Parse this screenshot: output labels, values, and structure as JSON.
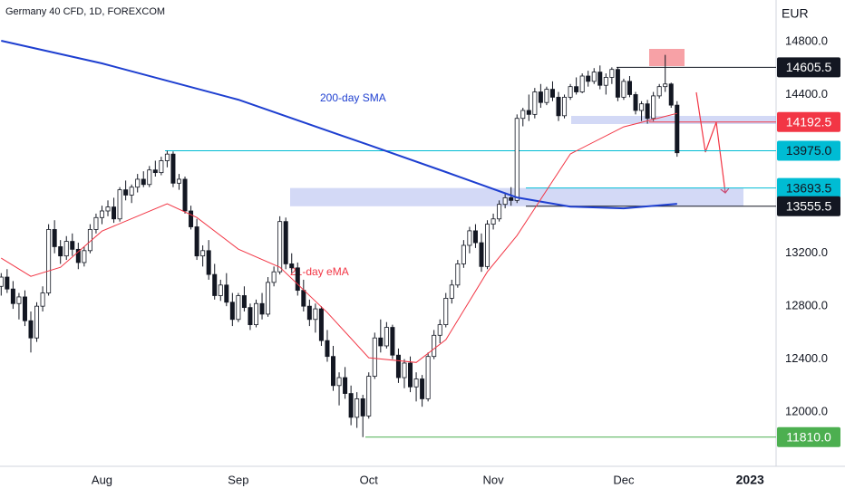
{
  "chart_data": {
    "type": "candlestick",
    "title": "Germany 40 CFD, 1D, FOREXCOM",
    "currency": "EUR",
    "ylim": [
      11610,
      15115
    ],
    "yticks": [
      {
        "value": 14800,
        "label": "14800.0"
      },
      {
        "value": 14400,
        "label": "14400.0"
      },
      {
        "value": 13200,
        "label": "13200.0"
      },
      {
        "value": 12800,
        "label": "12800.0"
      },
      {
        "value": 12400,
        "label": "12400.0"
      },
      {
        "value": 12000,
        "label": "12000.0"
      }
    ],
    "xlim": [
      -0.2,
      130.7
    ],
    "xticks": [
      {
        "value": 17,
        "label": "Aug"
      },
      {
        "value": 40,
        "label": "Sep"
      },
      {
        "value": 62,
        "label": "Oct"
      },
      {
        "value": 83,
        "label": "Nov"
      },
      {
        "value": 105,
        "label": "Dec"
      },
      {
        "value": 126.3,
        "label": "2023"
      }
    ],
    "candles": [
      [
        12950,
        13050,
        12880,
        13020
      ],
      [
        13020,
        13080,
        12900,
        12930
      ],
      [
        12930,
        12990,
        12780,
        12820
      ],
      [
        12820,
        12900,
        12700,
        12870
      ],
      [
        12870,
        12920,
        12650,
        12690
      ],
      [
        12690,
        12760,
        12450,
        12560
      ],
      [
        12560,
        12830,
        12530,
        12800
      ],
      [
        12800,
        12950,
        12760,
        12900
      ],
      [
        12900,
        13420,
        12880,
        13380
      ],
      [
        13380,
        13450,
        13200,
        13250
      ],
      [
        13250,
        13300,
        13120,
        13180
      ],
      [
        13180,
        13330,
        13150,
        13290
      ],
      [
        13290,
        13350,
        13180,
        13230
      ],
      [
        13230,
        13280,
        13080,
        13130
      ],
      [
        13130,
        13250,
        13100,
        13220
      ],
      [
        13220,
        13420,
        13200,
        13380
      ],
      [
        13380,
        13500,
        13350,
        13470
      ],
      [
        13470,
        13560,
        13420,
        13520
      ],
      [
        13520,
        13600,
        13480,
        13550
      ],
      [
        13550,
        13620,
        13430,
        13460
      ],
      [
        13460,
        13700,
        13440,
        13680
      ],
      [
        13680,
        13750,
        13600,
        13640
      ],
      [
        13640,
        13720,
        13580,
        13700
      ],
      [
        13700,
        13800,
        13660,
        13760
      ],
      [
        13760,
        13820,
        13700,
        13720
      ],
      [
        13720,
        13860,
        13700,
        13830
      ],
      [
        13830,
        13900,
        13780,
        13810
      ],
      [
        13810,
        13930,
        13790,
        13900
      ],
      [
        13900,
        13975,
        13850,
        13950
      ],
      [
        13950,
        13970,
        13700,
        13730
      ],
      [
        13730,
        13800,
        13680,
        13760
      ],
      [
        13760,
        13780,
        13500,
        13520
      ],
      [
        13520,
        13560,
        13380,
        13400
      ],
      [
        13400,
        13460,
        13150,
        13180
      ],
      [
        13180,
        13260,
        13100,
        13220
      ],
      [
        13220,
        13300,
        13000,
        13040
      ],
      [
        13040,
        13120,
        12850,
        12880
      ],
      [
        12880,
        13000,
        12840,
        12960
      ],
      [
        12960,
        13050,
        12800,
        12830
      ],
      [
        12830,
        12900,
        12650,
        12700
      ],
      [
        12700,
        12900,
        12680,
        12880
      ],
      [
        12880,
        12950,
        12760,
        12790
      ],
      [
        12790,
        12820,
        12620,
        12660
      ],
      [
        12660,
        12850,
        12640,
        12820
      ],
      [
        12820,
        12900,
        12700,
        12740
      ],
      [
        12740,
        13020,
        12720,
        12980
      ],
      [
        12980,
        13100,
        12950,
        13060
      ],
      [
        13060,
        13480,
        13040,
        13440
      ],
      [
        13440,
        13470,
        13080,
        13120
      ],
      [
        13120,
        13200,
        13050,
        13090
      ],
      [
        13090,
        13130,
        12880,
        12920
      ],
      [
        12920,
        13000,
        12760,
        12800
      ],
      [
        12800,
        12850,
        12650,
        12700
      ],
      [
        12700,
        12820,
        12600,
        12780
      ],
      [
        12780,
        12800,
        12500,
        12540
      ],
      [
        12540,
        12620,
        12380,
        12420
      ],
      [
        12420,
        12500,
        12160,
        12200
      ],
      [
        12200,
        12300,
        12050,
        12260
      ],
      [
        12260,
        12340,
        12100,
        12140
      ],
      [
        12140,
        12200,
        11900,
        11960
      ],
      [
        11960,
        12150,
        11880,
        12100
      ],
      [
        12100,
        12130,
        11810,
        11970
      ],
      [
        11970,
        12300,
        11950,
        12270
      ],
      [
        12270,
        12600,
        12250,
        12560
      ],
      [
        12560,
        12700,
        12450,
        12500
      ],
      [
        12500,
        12680,
        12480,
        12640
      ],
      [
        12640,
        12660,
        12400,
        12430
      ],
      [
        12430,
        12480,
        12220,
        12260
      ],
      [
        12260,
        12400,
        12180,
        12370
      ],
      [
        12370,
        12420,
        12150,
        12190
      ],
      [
        12190,
        12300,
        12080,
        12250
      ],
      [
        12250,
        12280,
        12040,
        12100
      ],
      [
        12100,
        12450,
        12080,
        12420
      ],
      [
        12420,
        12620,
        12400,
        12580
      ],
      [
        12580,
        12700,
        12520,
        12660
      ],
      [
        12660,
        12900,
        12640,
        12860
      ],
      [
        12860,
        13000,
        12820,
        12960
      ],
      [
        12960,
        13150,
        12940,
        13120
      ],
      [
        13120,
        13300,
        13090,
        13260
      ],
      [
        13260,
        13400,
        13200,
        13370
      ],
      [
        13370,
        13420,
        13240,
        13280
      ],
      [
        13280,
        13350,
        13060,
        13100
      ],
      [
        13100,
        13450,
        13080,
        13420
      ],
      [
        13420,
        13500,
        13380,
        13460
      ],
      [
        13460,
        13600,
        13440,
        13570
      ],
      [
        13570,
        13650,
        13540,
        13620
      ],
      [
        13620,
        13700,
        13560,
        13600
      ],
      [
        13600,
        14250,
        13580,
        14220
      ],
      [
        14220,
        14300,
        14160,
        14280
      ],
      [
        14280,
        14400,
        14200,
        14250
      ],
      [
        14250,
        14450,
        14220,
        14420
      ],
      [
        14420,
        14480,
        14300,
        14340
      ],
      [
        14340,
        14460,
        14320,
        14440
      ],
      [
        14440,
        14500,
        14350,
        14380
      ],
      [
        14380,
        14420,
        14200,
        14240
      ],
      [
        14240,
        14400,
        14220,
        14380
      ],
      [
        14380,
        14480,
        14360,
        14460
      ],
      [
        14460,
        14530,
        14400,
        14420
      ],
      [
        14420,
        14560,
        14410,
        14540
      ],
      [
        14540,
        14580,
        14460,
        14500
      ],
      [
        14500,
        14600,
        14480,
        14570
      ],
      [
        14570,
        14620,
        14440,
        14470
      ],
      [
        14470,
        14560,
        14400,
        14530
      ],
      [
        14530,
        14606,
        14480,
        14590
      ],
      [
        14590,
        14606,
        14350,
        14380
      ],
      [
        14380,
        14520,
        14360,
        14500
      ],
      [
        14500,
        14540,
        14380,
        14400
      ],
      [
        14400,
        14420,
        14250,
        14280
      ],
      [
        14280,
        14350,
        14200,
        14330
      ],
      [
        14330,
        14360,
        14180,
        14220
      ],
      [
        14220,
        14420,
        14200,
        14390
      ],
      [
        14390,
        14480,
        14370,
        14460
      ],
      [
        14460,
        14700,
        14420,
        14480
      ],
      [
        14480,
        14490,
        14300,
        14320
      ],
      [
        14320,
        14350,
        13930,
        13960
      ]
    ],
    "series": [
      {
        "name": "200-day SMA",
        "color": "#1e3fd0",
        "x": [
          0,
          17,
          40,
          62,
          75,
          87,
          96,
          105,
          114
        ],
        "values": [
          14807,
          14636,
          14361,
          14019,
          13814,
          13622,
          13553,
          13540,
          13574
        ]
      },
      {
        "name": "21-day eMA",
        "color": "#f23645",
        "x": [
          0,
          5,
          10,
          17,
          28,
          33,
          40,
          47,
          55,
          62,
          70,
          75,
          82,
          87,
          96,
          105,
          114
        ],
        "values": [
          13163,
          13026,
          13094,
          13368,
          13574,
          13471,
          13231,
          13094,
          12752,
          12410,
          12375,
          12547,
          13060,
          13334,
          13951,
          14156,
          14258
        ]
      }
    ],
    "levels": [
      {
        "value": 14605.5,
        "label": "14605.5",
        "color": "#131722"
      },
      {
        "value": 14192.5,
        "label": "14192.5",
        "color": "#f23645"
      },
      {
        "value": 13975.0,
        "label": "13975.0",
        "color": "#00bcd4"
      },
      {
        "value": 13693.5,
        "label": "13693.5",
        "color": "#00bcd4"
      },
      {
        "value": 13555.5,
        "label": "13555.5",
        "color": "#131722"
      },
      {
        "value": 11810.0,
        "label": "11810.0",
        "color": "#4caf50"
      }
    ]
  }
}
